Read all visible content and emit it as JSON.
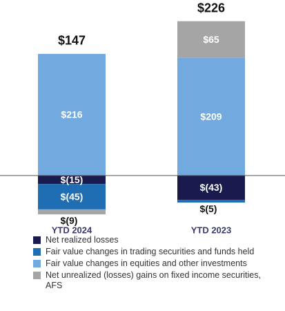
{
  "chart_data": {
    "type": "stacked_bar",
    "categories": [
      "YTD 2024",
      "YTD 2023"
    ],
    "series": [
      {
        "name": "Net realized losses",
        "color": "#1b1a4f",
        "values": [
          -15,
          -43
        ],
        "value_labels": [
          "$(15)",
          "$(43)"
        ]
      },
      {
        "name": "Fair value changes in trading securities and funds held",
        "color": "#1f6db3",
        "values": [
          -45,
          -5
        ],
        "value_labels": [
          "$(45)",
          "$(5)"
        ]
      },
      {
        "name": "Fair value changes in equities and other investments",
        "color": "#72a9de",
        "values": [
          216,
          209
        ],
        "value_labels": [
          "$216",
          "$209"
        ]
      },
      {
        "name": "Net unrealized (losses) gains on fixed income securities, AFS",
        "color": "#a5a5a5",
        "values": [
          -9,
          65
        ],
        "value_labels": [
          "$(9)",
          "$65"
        ]
      }
    ],
    "totals": [
      147,
      226
    ],
    "total_labels": [
      "$147",
      "$226"
    ],
    "ylim": [
      -80,
      300
    ]
  }
}
